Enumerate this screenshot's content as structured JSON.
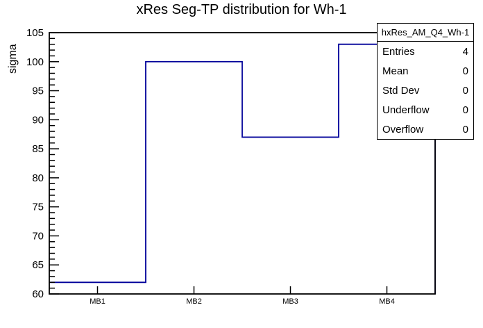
{
  "chart_data": {
    "type": "bar",
    "subtype": "step-histogram",
    "title": "xRes Seg-TP distribution for Wh-1",
    "categories": [
      "MB1",
      "MB2",
      "MB3",
      "MB4"
    ],
    "values": [
      62,
      100,
      87,
      103
    ],
    "xlabel": "",
    "ylabel": "sigma",
    "ylim": [
      60,
      105
    ],
    "ytick_step": 5,
    "yminor_step": 1,
    "ytick_labels": [
      "60",
      "65",
      "70",
      "75",
      "80",
      "85",
      "90",
      "95",
      "100",
      "105"
    ],
    "grid": false,
    "legend_position": "none",
    "line_color": "#000099",
    "frame_color": "#000000",
    "background_color": "#ffffff"
  },
  "stats_box": {
    "header": "hxRes_AM_Q4_Wh-1",
    "rows": [
      {
        "label": "Entries",
        "value": "4"
      },
      {
        "label": "Mean",
        "value": "0"
      },
      {
        "label": "Std Dev",
        "value": "0"
      },
      {
        "label": "Underflow",
        "value": "0"
      },
      {
        "label": "Overflow",
        "value": "0"
      }
    ]
  }
}
